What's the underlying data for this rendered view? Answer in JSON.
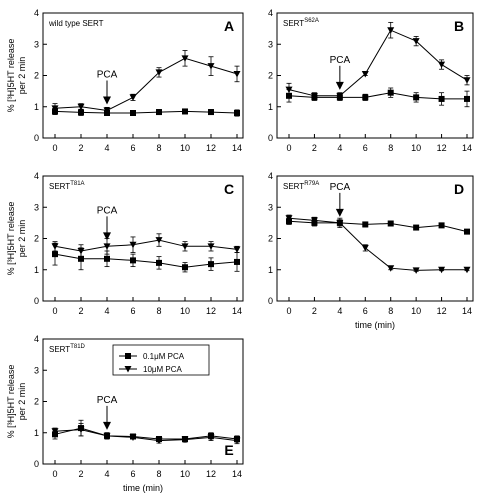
{
  "legend": [
    {
      "name": "0.1μM PCA",
      "marker": "square"
    },
    {
      "name": "10μM PCA",
      "marker": "triangle-down"
    }
  ],
  "chart_data": [
    {
      "type": "line",
      "panel_letter": "A",
      "label_main": "wild type SERT",
      "label_sup": "",
      "annotation": "PCA",
      "annotation_x": 4,
      "x": [
        0,
        2,
        4,
        6,
        8,
        10,
        12,
        14
      ],
      "xlim": [
        0,
        14
      ],
      "ylim": [
        0,
        4
      ],
      "xticks": [
        "0",
        "2",
        "4",
        "6",
        "8",
        "10",
        "12",
        "14"
      ],
      "yticks": [
        "0",
        "1",
        "2",
        "3",
        "4"
      ],
      "xlabel": "",
      "ylabel": "% [³H]5HT release per 2 min",
      "series": [
        {
          "name": "0.1μM PCA",
          "values": [
            0.85,
            0.82,
            0.8,
            0.8,
            0.83,
            0.85,
            0.83,
            0.8
          ],
          "errors": [
            0.1,
            0.1,
            0.08,
            0.08,
            0.08,
            0.08,
            0.08,
            0.1
          ]
        },
        {
          "name": "10μM PCA",
          "values": [
            0.95,
            1.0,
            0.88,
            1.3,
            2.1,
            2.55,
            2.3,
            2.05
          ],
          "errors": [
            0.15,
            0.1,
            0.1,
            0.1,
            0.15,
            0.25,
            0.3,
            0.25
          ]
        }
      ]
    },
    {
      "type": "line",
      "panel_letter": "B",
      "label_main": "SERT",
      "label_sup": "S62A",
      "annotation": "PCA",
      "annotation_x": 4,
      "x": [
        0,
        2,
        4,
        6,
        8,
        10,
        12,
        14
      ],
      "xlim": [
        0,
        14
      ],
      "ylim": [
        0,
        4
      ],
      "xticks": [
        "0",
        "2",
        "4",
        "6",
        "8",
        "10",
        "12",
        "14"
      ],
      "yticks": [
        "0",
        "1",
        "2",
        "3",
        "4"
      ],
      "xlabel": "",
      "ylabel": "",
      "series": [
        {
          "name": "0.1μM PCA",
          "values": [
            1.35,
            1.3,
            1.3,
            1.3,
            1.45,
            1.3,
            1.25,
            1.25
          ],
          "errors": [
            0.2,
            0.1,
            0.1,
            0.1,
            0.15,
            0.15,
            0.2,
            0.25
          ]
        },
        {
          "name": "10μM PCA",
          "values": [
            1.55,
            1.35,
            1.35,
            2.05,
            3.45,
            3.1,
            2.35,
            1.85
          ],
          "errors": [
            0.2,
            0.1,
            0.1,
            0.05,
            0.25,
            0.15,
            0.15,
            0.15
          ]
        }
      ]
    },
    {
      "type": "line",
      "panel_letter": "C",
      "label_main": "SERT",
      "label_sup": "T81A",
      "annotation": "PCA",
      "annotation_x": 4,
      "x": [
        0,
        2,
        4,
        6,
        8,
        10,
        12,
        14
      ],
      "xlim": [
        0,
        14
      ],
      "ylim": [
        0,
        4
      ],
      "xticks": [
        "0",
        "2",
        "4",
        "6",
        "8",
        "10",
        "12",
        "14"
      ],
      "yticks": [
        "0",
        "1",
        "2",
        "3",
        "4"
      ],
      "xlabel": "",
      "ylabel": "% [³H]5HT release per 2 min",
      "series": [
        {
          "name": "0.1μM PCA",
          "values": [
            1.5,
            1.35,
            1.35,
            1.3,
            1.22,
            1.08,
            1.18,
            1.25
          ],
          "errors": [
            0.35,
            0.35,
            0.25,
            0.2,
            0.2,
            0.15,
            0.2,
            0.3
          ]
        },
        {
          "name": "10μM PCA",
          "values": [
            1.75,
            1.6,
            1.75,
            1.8,
            1.95,
            1.75,
            1.75,
            1.65
          ],
          "errors": [
            0.15,
            0.2,
            0.25,
            0.25,
            0.2,
            0.15,
            0.15,
            0.1
          ]
        }
      ]
    },
    {
      "type": "line",
      "panel_letter": "D",
      "label_main": "SERT",
      "label_sup": "R79A",
      "annotation": "PCA",
      "annotation_x": 4,
      "x": [
        0,
        2,
        4,
        6,
        8,
        10,
        12,
        14
      ],
      "xlim": [
        0,
        14
      ],
      "ylim": [
        0,
        4
      ],
      "xticks": [
        "0",
        "2",
        "4",
        "6",
        "8",
        "10",
        "12",
        "14"
      ],
      "yticks": [
        "0",
        "1",
        "2",
        "3",
        "4"
      ],
      "xlabel": "time (min)",
      "ylabel": "",
      "series": [
        {
          "name": "0.1μM PCA",
          "values": [
            2.55,
            2.5,
            2.5,
            2.45,
            2.48,
            2.35,
            2.42,
            2.22
          ],
          "errors": [
            0.1,
            0.1,
            0.1,
            0.08,
            0.06,
            0.05,
            0.05,
            0.05
          ]
        },
        {
          "name": "10μM PCA",
          "values": [
            2.65,
            2.58,
            2.5,
            1.7,
            1.05,
            0.98,
            1.0,
            1.0
          ],
          "errors": [
            0.1,
            0.1,
            0.15,
            0.1,
            0.05,
            0.03,
            0.03,
            0.03
          ]
        }
      ]
    },
    {
      "type": "line",
      "panel_letter": "E",
      "label_main": "SERT",
      "label_sup": "T81D",
      "annotation": "PCA",
      "annotation_x": 4,
      "x": [
        0,
        2,
        4,
        6,
        8,
        10,
        12,
        14
      ],
      "xlim": [
        0,
        14
      ],
      "ylim": [
        0,
        4
      ],
      "xticks": [
        "0",
        "2",
        "4",
        "6",
        "8",
        "10",
        "12",
        "14"
      ],
      "yticks": [
        "0",
        "1",
        "2",
        "3",
        "4"
      ],
      "xlabel": "time (min)",
      "ylabel": "% [³H]5HT release per 2 min",
      "series": [
        {
          "name": "0.1μM PCA",
          "values": [
            0.95,
            1.15,
            0.9,
            0.88,
            0.8,
            0.8,
            0.9,
            0.8
          ],
          "errors": [
            0.15,
            0.25,
            0.1,
            0.05,
            0.08,
            0.08,
            0.1,
            0.1
          ]
        },
        {
          "name": "10μM PCA",
          "values": [
            1.05,
            1.1,
            0.9,
            0.85,
            0.75,
            0.78,
            0.85,
            0.75
          ],
          "errors": [
            0.1,
            0.2,
            0.1,
            0.05,
            0.08,
            0.08,
            0.1,
            0.1
          ]
        }
      ]
    }
  ]
}
